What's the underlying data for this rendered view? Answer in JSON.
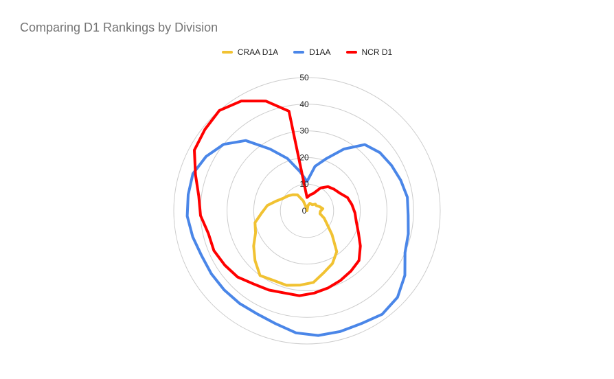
{
  "chart_data": {
    "type": "radar",
    "title": "Comparing D1 Rankings by Division",
    "legend_position": "top",
    "grid": true,
    "r_axis": {
      "min": 0,
      "max": 50,
      "ticks": [
        "0",
        "10",
        "20",
        "30",
        "40",
        "50"
      ]
    },
    "series": [
      {
        "name": "CRAA D1A",
        "color": "#f1c232",
        "values": [
          0,
          2,
          3,
          3,
          3,
          4,
          4,
          5,
          6,
          5,
          5,
          7,
          9,
          13,
          19,
          22,
          24,
          27,
          28,
          29,
          29,
          30,
          27,
          24,
          21,
          20,
          17,
          15,
          12,
          10,
          9,
          8,
          7,
          4,
          1
        ]
      },
      {
        "name": "D1AA",
        "color": "#4a86e8",
        "values": [
          11,
          17,
          21,
          27,
          33,
          35,
          36,
          37,
          38,
          38,
          39,
          40,
          44,
          47,
          48,
          47,
          47,
          47,
          46,
          44,
          43,
          43,
          43,
          43,
          43,
          44,
          45,
          45,
          45,
          43,
          40,
          35,
          27,
          21,
          15
        ]
      },
      {
        "name": "NCR D1",
        "color": "#ff0000",
        "values": [
          5,
          6,
          7,
          10,
          12,
          13,
          14,
          16,
          17,
          18,
          19,
          21,
          24,
          27,
          28,
          29,
          30,
          31,
          32,
          32,
          33,
          34,
          36,
          37,
          38,
          38,
          40,
          41,
          44,
          48,
          49,
          50,
          48,
          44,
          38
        ]
      }
    ]
  }
}
